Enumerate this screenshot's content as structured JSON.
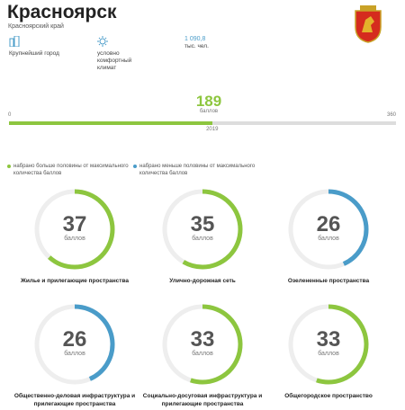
{
  "header": {
    "city": "Красноярск",
    "region": "Красноярский край"
  },
  "facts": [
    {
      "label": "Крупнейший город"
    },
    {
      "label": "условно комфортный климат"
    },
    {
      "value": "1 090,8",
      "unit": "тыс. чел."
    }
  ],
  "score": {
    "value": 189,
    "unit": "баллов",
    "min": 0,
    "max": 360,
    "year": "2019"
  },
  "legend": [
    {
      "label": "набрано больше половины от максимального количества баллов",
      "color": "#8dc63f"
    },
    {
      "label": "набрано меньше половины от максимального количества баллов",
      "color": "#4a9cc9"
    }
  ],
  "gauges": {
    "unit": "баллов",
    "items": [
      {
        "value": 37,
        "label": "Жилье и прилегающие пространства"
      },
      {
        "value": 35,
        "label": "Улично-дорожная сеть"
      },
      {
        "value": 26,
        "label": "Озелененные пространства"
      },
      {
        "value": 26,
        "label": "Общественно-деловая инфраструктура и прилегающие пространства"
      },
      {
        "value": 33,
        "label": "Социально-досуговая инфраструктура и прилегающие пространства"
      },
      {
        "value": 33,
        "label": "Общегородское пространство"
      }
    ]
  }
}
